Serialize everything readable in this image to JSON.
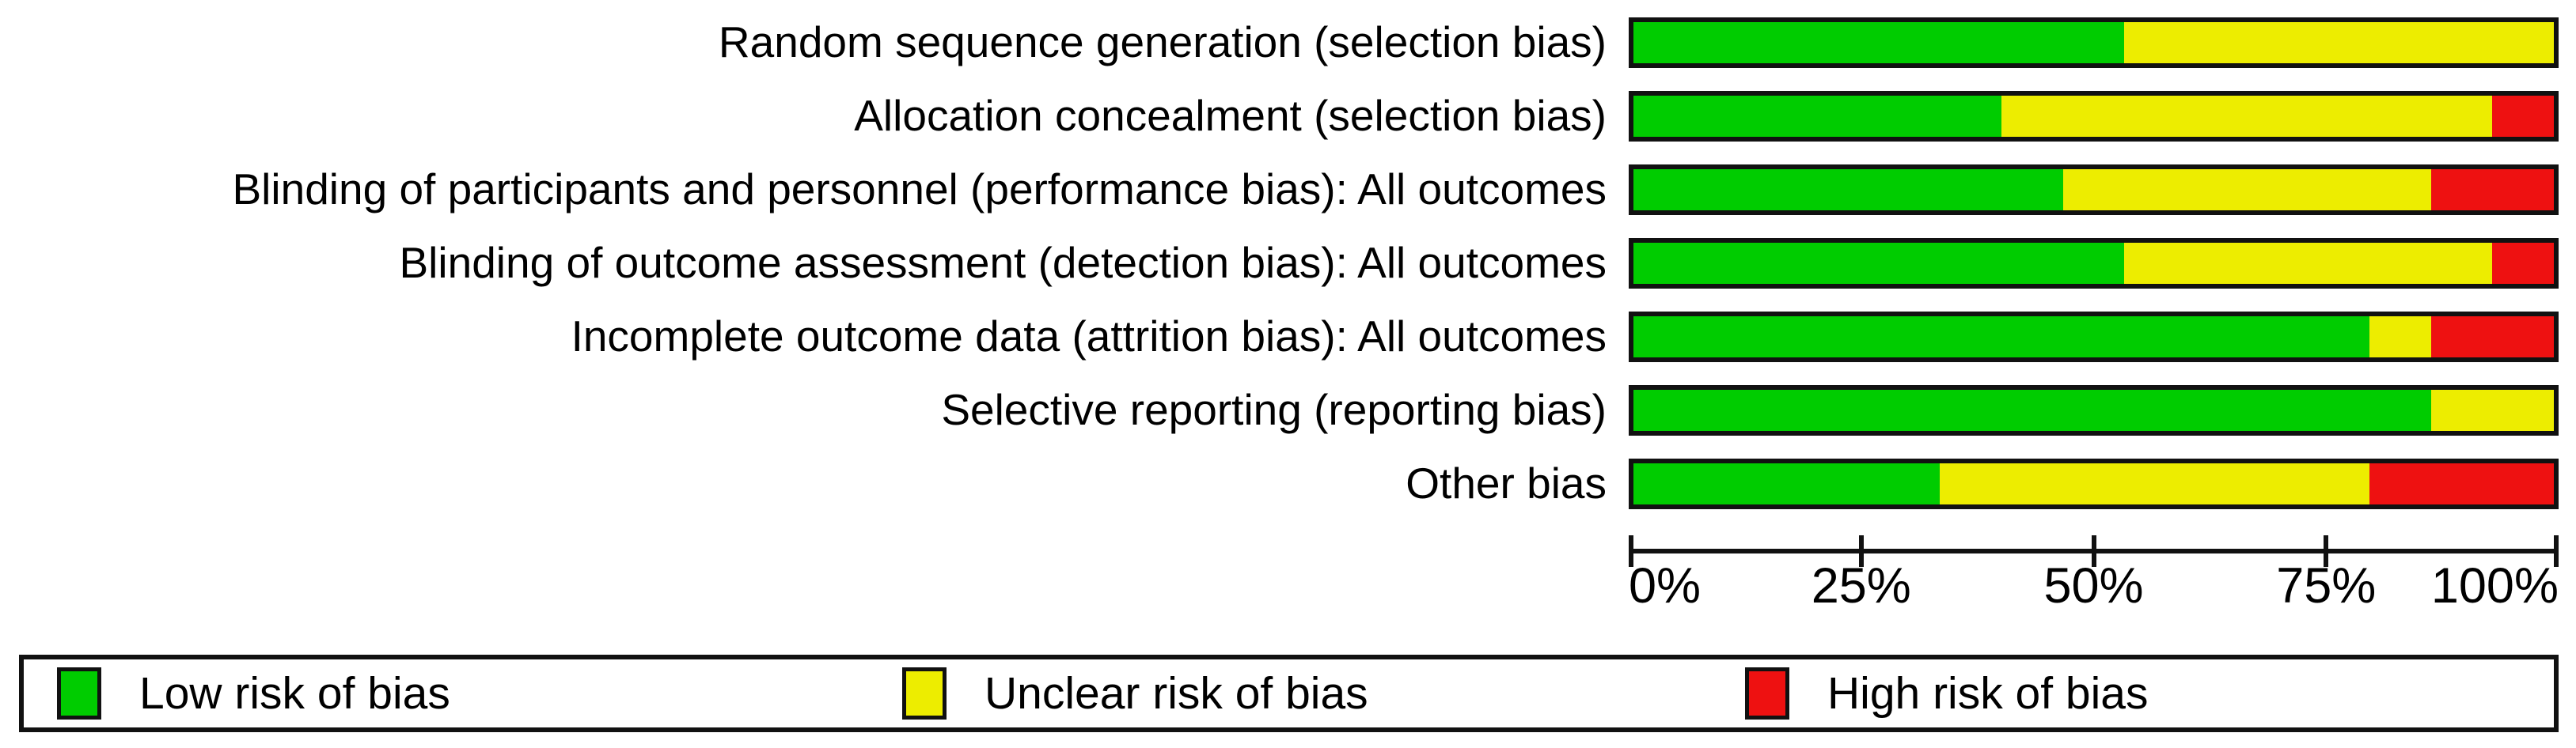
{
  "chart_data": {
    "type": "bar",
    "variant": "horizontal-stacked",
    "title": "",
    "xlabel": "",
    "ylabel": "",
    "xlim": [
      0,
      100
    ],
    "grid": false,
    "legend_position": "bottom",
    "categories": [
      "Random sequence generation (selection bias)",
      "Allocation concealment (selection bias)",
      "Blinding of participants and personnel (performance bias): All outcomes",
      "Blinding of outcome assessment (detection bias): All outcomes",
      "Incomplete outcome data (attrition bias): All outcomes",
      "Selective reporting (reporting bias)",
      "Other bias"
    ],
    "series": [
      {
        "name": "Low risk of bias",
        "color": "#00CC00",
        "values": [
          53.3,
          40.0,
          46.7,
          53.3,
          80.0,
          86.7,
          33.3
        ]
      },
      {
        "name": "Unclear risk of bias",
        "color": "#EDED00",
        "values": [
          46.7,
          53.3,
          40.0,
          40.0,
          6.7,
          13.3,
          46.7
        ]
      },
      {
        "name": "High risk of bias",
        "color": "#EE1111",
        "values": [
          0.0,
          6.7,
          13.3,
          6.7,
          13.3,
          0.0,
          20.0
        ]
      }
    ],
    "x_ticks": [
      "0%",
      "25%",
      "50%",
      "75%",
      "100%"
    ],
    "x_tick_values": [
      0,
      25,
      50,
      75,
      100
    ]
  },
  "colors": {
    "low_risk": "#00CC00",
    "unclear_risk": "#EDED00",
    "high_risk": "#EE1111",
    "border": "#111111",
    "background": "#ffffff"
  }
}
